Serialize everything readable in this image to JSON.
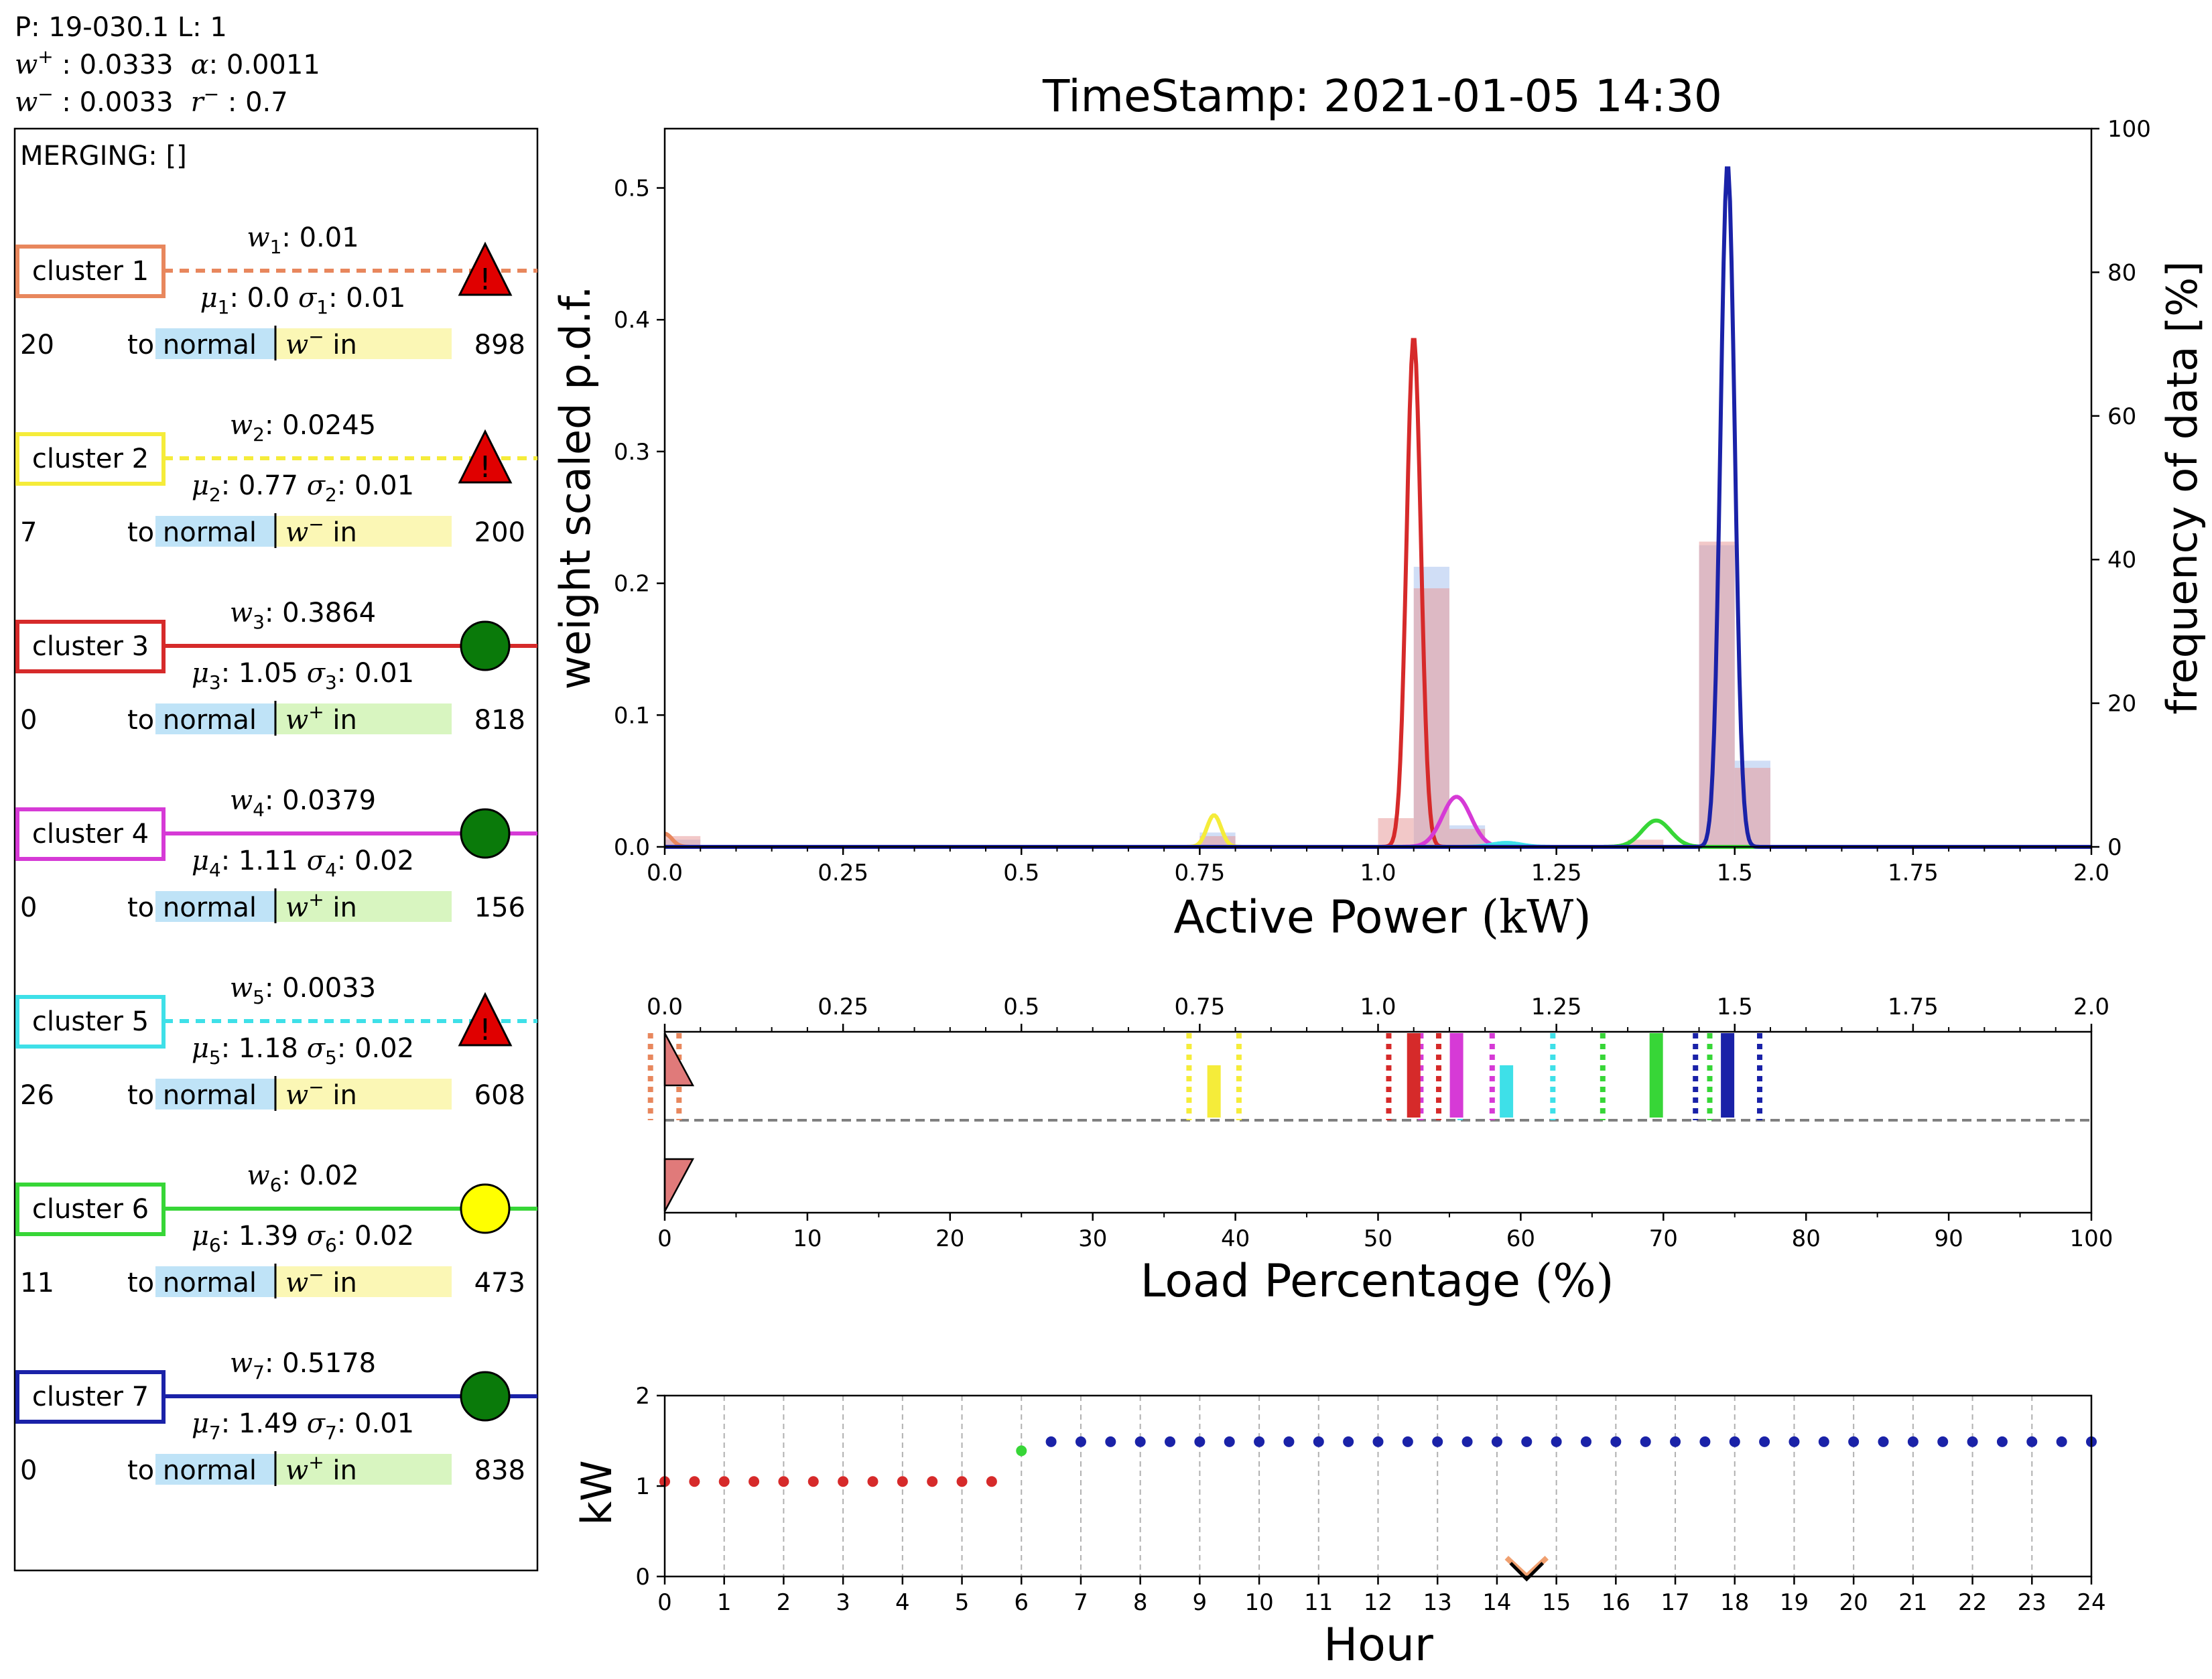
{
  "header": {
    "line1": "P: 19-030.1 L: 1",
    "w_plus": "0.0333",
    "alpha": "0.0011",
    "w_minus": "0.0033",
    "r_minus": "0.7"
  },
  "panel": {
    "merging": "MERGING: []",
    "to_normal": "to normal",
    "in": "in",
    "clusters": [
      {
        "label": "cluster 1",
        "idx": "1",
        "w": "0.01",
        "mu": "0.0",
        "sigma": "0.01",
        "color": "#e8875d",
        "line": "dashed",
        "status": "warning",
        "count_left": "20",
        "tag": "w-",
        "count_right": "898"
      },
      {
        "label": "cluster 2",
        "idx": "2",
        "w": "0.0245",
        "mu": "0.77",
        "sigma": "0.01",
        "color": "#f5ec3a",
        "line": "dashed",
        "status": "warning",
        "count_left": "7",
        "tag": "w-",
        "count_right": "200"
      },
      {
        "label": "cluster 3",
        "idx": "3",
        "w": "0.3864",
        "mu": "1.05",
        "sigma": "0.01",
        "color": "#d62a2a",
        "line": "solid",
        "status": "ok-green",
        "count_left": "0",
        "tag": "w+",
        "count_right": "818"
      },
      {
        "label": "cluster 4",
        "idx": "4",
        "w": "0.0379",
        "mu": "1.11",
        "sigma": "0.02",
        "color": "#d63ad6",
        "line": "solid",
        "status": "ok-green",
        "count_left": "0",
        "tag": "w+",
        "count_right": "156"
      },
      {
        "label": "cluster 5",
        "idx": "5",
        "w": "0.0033",
        "mu": "1.18",
        "sigma": "0.02",
        "color": "#3ee0e8",
        "line": "dashed",
        "status": "warning",
        "count_left": "26",
        "tag": "w-",
        "count_right": "608"
      },
      {
        "label": "cluster 6",
        "idx": "6",
        "w": "0.02",
        "mu": "1.39",
        "sigma": "0.02",
        "color": "#37d637",
        "line": "solid",
        "status": "ok-yellow",
        "count_left": "11",
        "tag": "w-",
        "count_right": "473"
      },
      {
        "label": "cluster 7",
        "idx": "7",
        "w": "0.5178",
        "mu": "1.49",
        "sigma": "0.01",
        "color": "#1a22a8",
        "line": "solid",
        "status": "ok-green",
        "count_left": "0",
        "tag": "w+",
        "count_right": "838"
      }
    ]
  },
  "chart_data": [
    {
      "type": "line",
      "title": "TimeStamp:  2021-01-05 14:30",
      "xlabel": "Active Power",
      "xlabel_unit": "(kW)",
      "ylabel": "weight scaled p.d.f.",
      "y2label": "frequency of data [%]",
      "xlim": [
        0,
        2.0
      ],
      "ylim": [
        0,
        0.545
      ],
      "y2lim": [
        0,
        100
      ],
      "xticks": [
        "0.0",
        "0.25",
        "0.5",
        "0.75",
        "1.0",
        "1.25",
        "1.5",
        "1.75",
        "2.0"
      ],
      "yticks": [
        "0.0",
        "0.1",
        "0.2",
        "0.3",
        "0.4",
        "0.5"
      ],
      "y2ticks": [
        "0",
        "20",
        "40",
        "60",
        "80",
        "100"
      ],
      "series": [
        {
          "component": "cluster 1",
          "mu": 0.0,
          "sigma": 0.01,
          "peak": 0.01,
          "color": "#e8875d"
        },
        {
          "component": "cluster 2",
          "mu": 0.77,
          "sigma": 0.01,
          "peak": 0.024,
          "color": "#f5ec3a"
        },
        {
          "component": "cluster 3",
          "mu": 1.05,
          "sigma": 0.01,
          "peak": 0.387,
          "color": "#d62a2a"
        },
        {
          "component": "cluster 4",
          "mu": 1.11,
          "sigma": 0.02,
          "peak": 0.038,
          "color": "#d63ad6"
        },
        {
          "component": "cluster 5",
          "mu": 1.18,
          "sigma": 0.02,
          "peak": 0.003,
          "color": "#3ee0e8"
        },
        {
          "component": "cluster 6",
          "mu": 1.39,
          "sigma": 0.02,
          "peak": 0.02,
          "color": "#37d637"
        },
        {
          "component": "cluster 7",
          "mu": 1.49,
          "sigma": 0.01,
          "peak": 0.518,
          "color": "#1a22a8"
        }
      ],
      "histograms": [
        {
          "color": "#a9c3ee",
          "bins": [
            [
              0.0,
              0.05,
              1
            ],
            [
              0.75,
              0.8,
              2
            ],
            [
              1.05,
              1.1,
              39
            ],
            [
              1.1,
              1.15,
              3
            ],
            [
              1.45,
              1.5,
              42
            ],
            [
              1.5,
              1.55,
              12
            ]
          ]
        },
        {
          "color": "#e89a9a",
          "bins": [
            [
              0.0,
              0.05,
              1.5
            ],
            [
              0.75,
              0.8,
              1.5
            ],
            [
              1.0,
              1.05,
              4
            ],
            [
              1.05,
              1.1,
              36
            ],
            [
              1.1,
              1.15,
              2.5
            ],
            [
              1.35,
              1.4,
              1
            ],
            [
              1.45,
              1.5,
              42.5
            ],
            [
              1.5,
              1.55,
              11
            ]
          ]
        }
      ]
    },
    {
      "type": "scatter",
      "xlabel": "Load Percentage",
      "xlabel_unit": "(%)",
      "xlim": [
        0,
        100
      ],
      "xticks": [
        "0",
        "10",
        "20",
        "30",
        "40",
        "50",
        "60",
        "70",
        "80",
        "90",
        "100"
      ],
      "top_xlim": [
        0,
        2.0
      ],
      "top_xticks": [
        "0.0",
        "0.25",
        "0.5",
        "0.75",
        "1.0",
        "1.25",
        "1.5",
        "1.75",
        "2.0"
      ],
      "markers": [
        {
          "mu": 0.0,
          "color": "#e8875d",
          "style": "dotted-pair",
          "half_width": 0.02
        },
        {
          "mu": 0.77,
          "color": "#f5ec3a",
          "style": "dotted-pair",
          "half_width": 0.035
        },
        {
          "mu": 1.05,
          "color": "#d62a2a",
          "style": "dotted-pair",
          "half_width": 0.035
        },
        {
          "mu": 1.11,
          "color": "#d63ad6",
          "style": "dotted-pair",
          "half_width": 0.05
        },
        {
          "mu": 1.18,
          "color": "#3ee0e8",
          "style": "dotted-pair",
          "half_width": 0.065
        },
        {
          "mu": 1.39,
          "color": "#37d637",
          "style": "dotted-pair",
          "half_width": 0.075
        },
        {
          "mu": 1.49,
          "color": "#1a22a8",
          "style": "dotted-pair",
          "half_width": 0.045
        }
      ],
      "bars": [
        {
          "mu": 0.77,
          "color": "#f5ec3a",
          "span": "lower"
        },
        {
          "mu": 1.05,
          "color": "#d62a2a",
          "span": "full"
        },
        {
          "mu": 1.11,
          "color": "#d63ad6",
          "span": "full"
        },
        {
          "mu": 1.18,
          "color": "#3ee0e8",
          "span": "lower"
        },
        {
          "mu": 1.39,
          "color": "#37d637",
          "span": "full"
        },
        {
          "mu": 1.49,
          "color": "#1a22a8",
          "span": "full"
        }
      ],
      "triangles": [
        {
          "x": 0.0,
          "row": "upper",
          "color": "#e07a7a"
        },
        {
          "x": 0.0,
          "row": "lower",
          "color": "#e07a7a"
        }
      ],
      "reference_line": "dashed"
    },
    {
      "type": "scatter",
      "xlabel": "Hour",
      "ylabel": "kW",
      "xlim": [
        0,
        24
      ],
      "ylim": [
        0,
        2
      ],
      "xticks": [
        "0",
        "1",
        "2",
        "3",
        "4",
        "5",
        "6",
        "7",
        "8",
        "9",
        "10",
        "11",
        "12",
        "13",
        "14",
        "15",
        "16",
        "17",
        "18",
        "19",
        "20",
        "21",
        "22",
        "23",
        "24"
      ],
      "yticks": [
        "0",
        "1",
        "2"
      ],
      "grid": "vertical dashed",
      "current_marker": {
        "x": 14.5,
        "y": 0
      },
      "series": [
        {
          "color": "#d62a2a",
          "x": [
            0,
            0.5,
            1,
            1.5,
            2,
            2.5,
            3,
            3.5,
            4,
            4.5,
            5,
            5.5
          ],
          "y": [
            1.05,
            1.05,
            1.05,
            1.05,
            1.05,
            1.05,
            1.05,
            1.05,
            1.05,
            1.05,
            1.05,
            1.05
          ]
        },
        {
          "color": "#37d637",
          "x": [
            6.0
          ],
          "y": [
            1.39
          ]
        },
        {
          "color": "#1a22a8",
          "x": [
            6.5,
            7,
            7.5,
            8,
            8.5,
            9,
            9.5,
            10,
            10.5,
            11,
            11.5,
            12,
            12.5,
            13,
            13.5,
            14,
            14.5,
            15,
            15.5,
            16,
            16.5,
            17,
            17.5,
            18,
            18.5,
            19,
            19.5,
            20,
            20.5,
            21,
            21.5,
            22,
            22.5,
            23,
            23.5,
            24
          ],
          "y": [
            1.49,
            1.49,
            1.49,
            1.49,
            1.49,
            1.49,
            1.49,
            1.49,
            1.49,
            1.49,
            1.49,
            1.49,
            1.49,
            1.49,
            1.49,
            1.49,
            1.49,
            1.49,
            1.49,
            1.49,
            1.49,
            1.49,
            1.49,
            1.49,
            1.49,
            1.49,
            1.49,
            1.49,
            1.49,
            1.49,
            1.49,
            1.49,
            1.49,
            1.49,
            1.49,
            1.49
          ]
        }
      ]
    }
  ]
}
